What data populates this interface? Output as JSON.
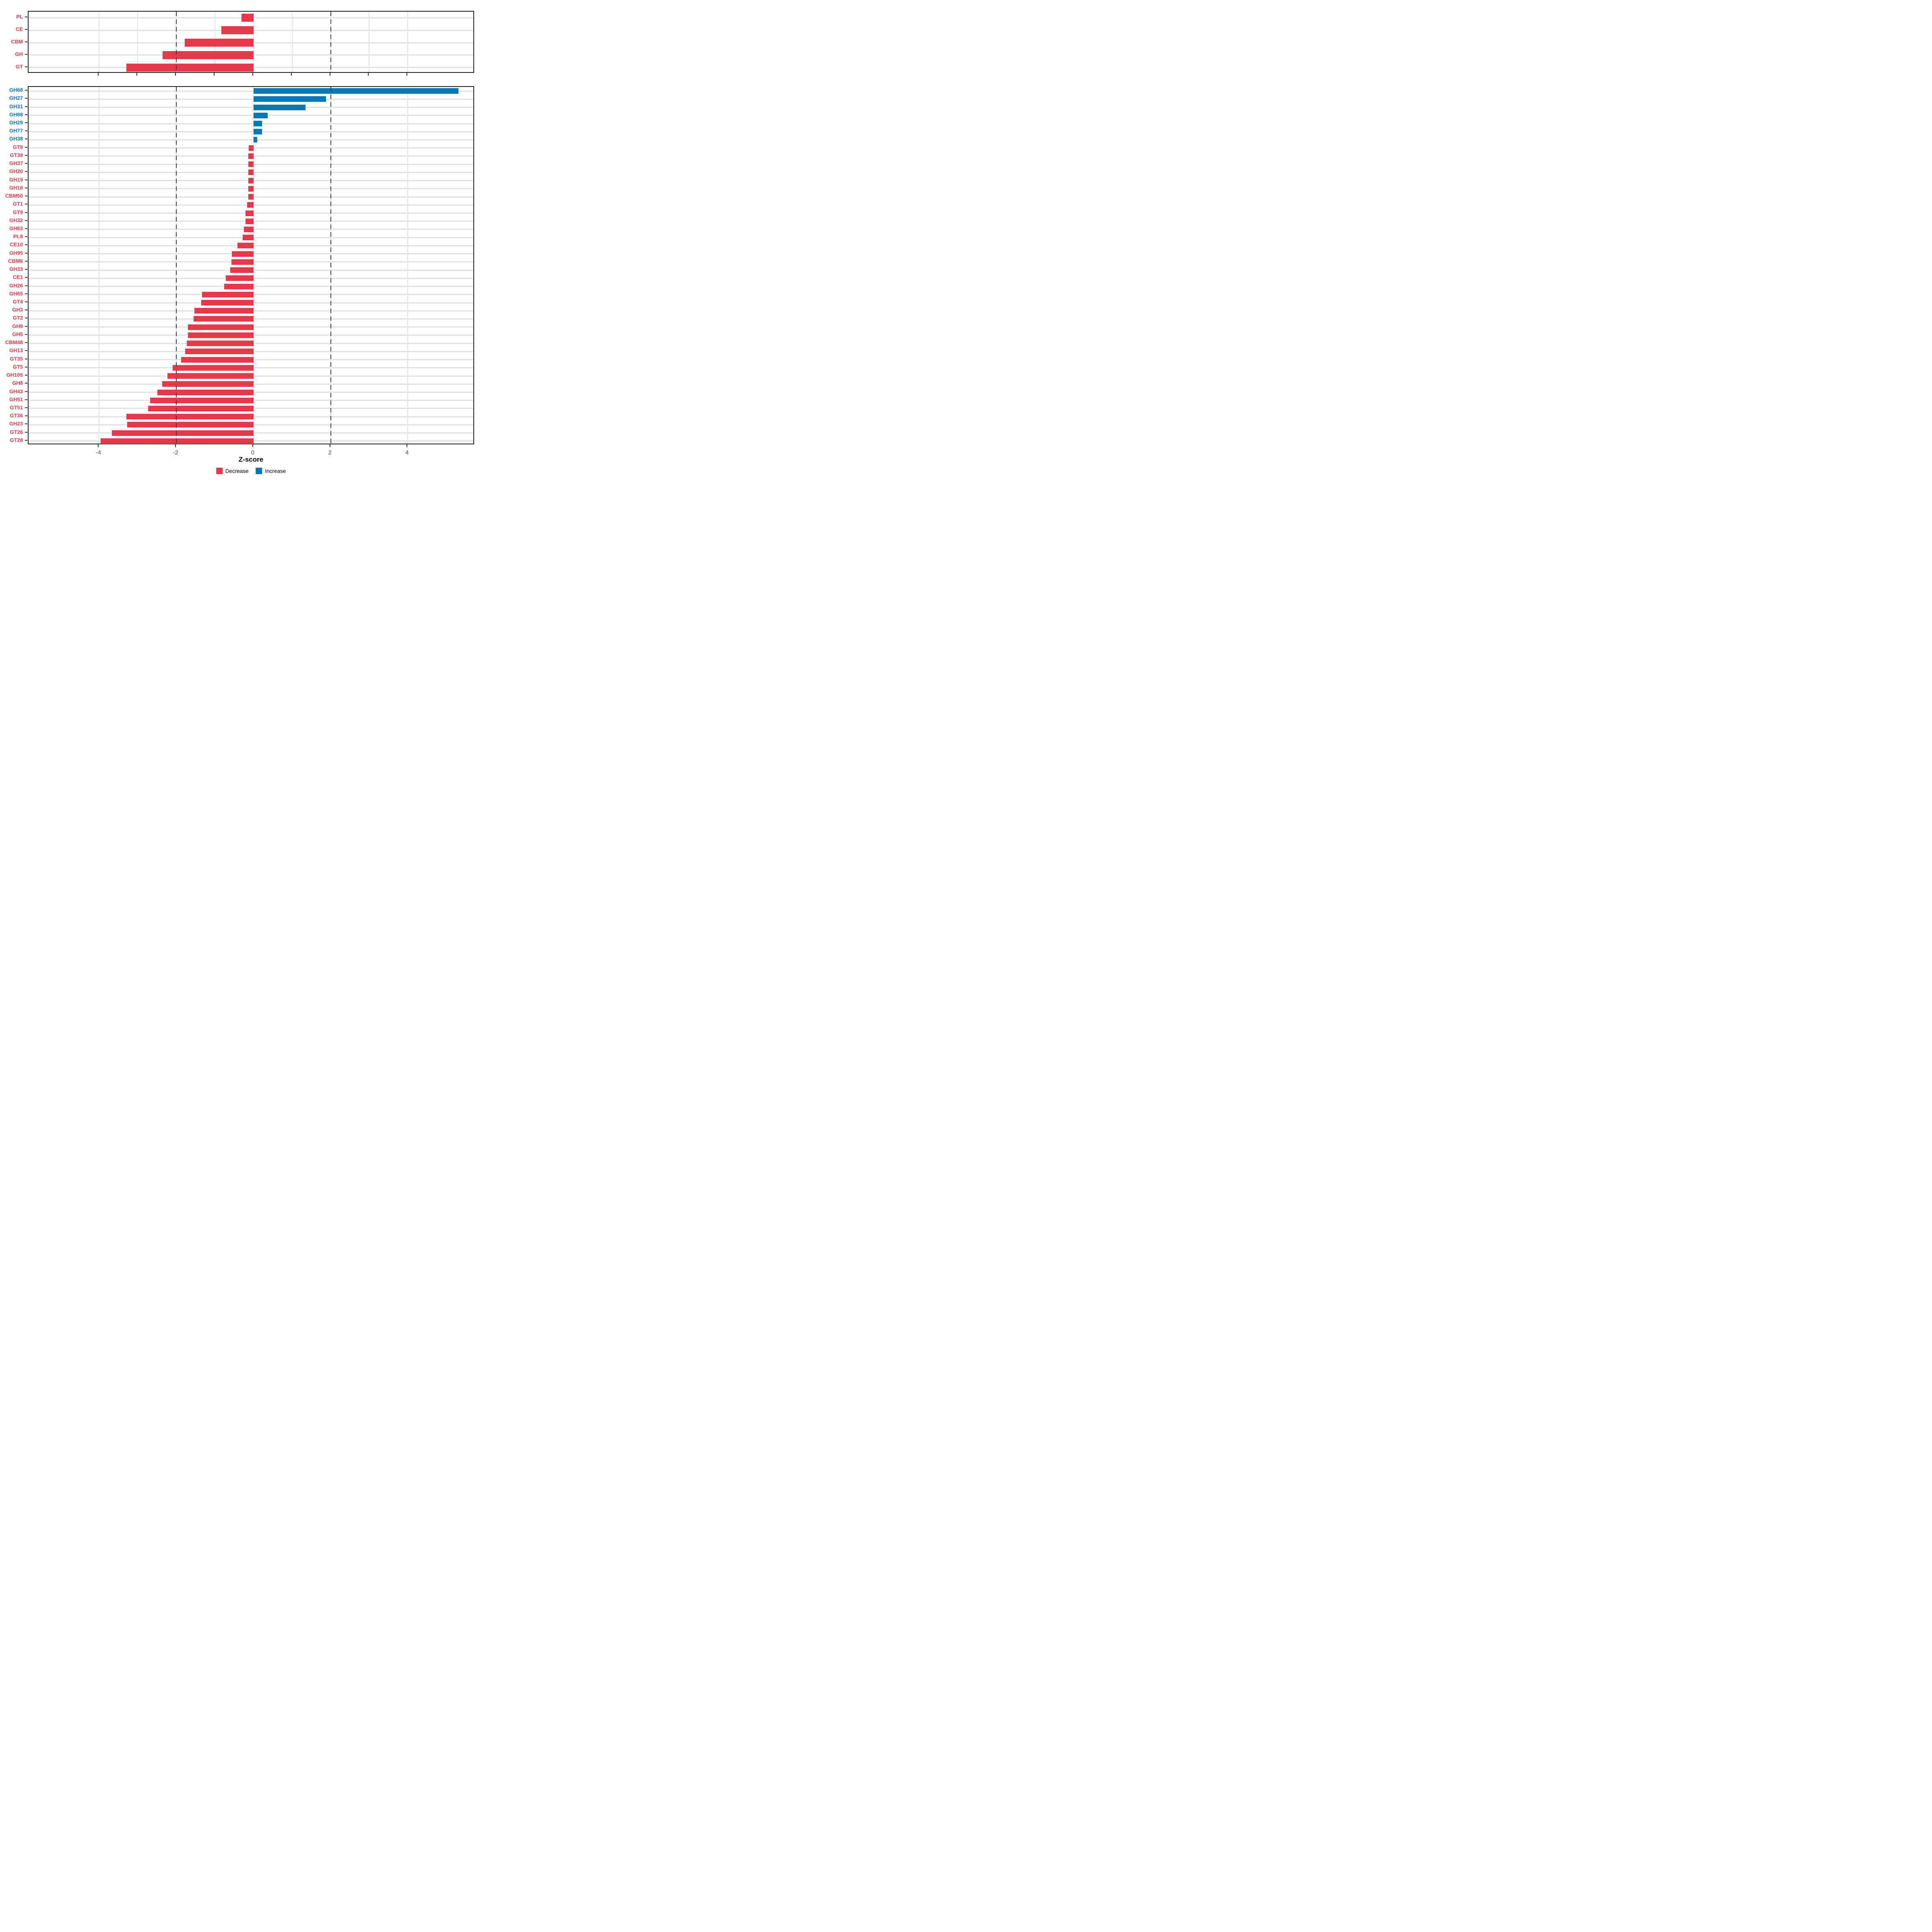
{
  "page": {
    "background": "#ffffff"
  },
  "x_axis": {
    "title": "Z-score",
    "tick_labels": [
      "-4",
      "-2",
      "0",
      "2",
      "4"
    ],
    "tick_values": [
      -4,
      -2,
      0,
      2,
      4
    ]
  },
  "legend": {
    "items": [
      {
        "label": "Decrease",
        "color": "#e5384a"
      },
      {
        "label": "Increase",
        "color": "#0878b4"
      }
    ]
  },
  "chart_data": {
    "type": "bar",
    "orientation": "horizontal",
    "xlabel": "Z-score",
    "xlim": [
      -5.83,
      5.74
    ],
    "grid": "on",
    "legend_position": "bottom",
    "dashed_reference_lines_x": [
      -2,
      2
    ],
    "colors": {
      "decrease": "#e5384a",
      "increase": "#0878b4"
    },
    "panels": [
      {
        "name": "cazyme-class-summary",
        "grid_x": [
          -4,
          -3,
          -2,
          -1,
          0,
          1,
          2,
          3,
          4
        ],
        "tick_x": [
          -4,
          -3,
          -2,
          -1,
          0,
          1,
          2,
          3,
          4
        ],
        "show_tick_labels": false,
        "categories": [
          "PL",
          "CE",
          "CBM",
          "GH",
          "GT"
        ],
        "values": [
          -0.31,
          -0.83,
          -1.78,
          -2.36,
          -3.29
        ]
      },
      {
        "name": "cazyme-family-detail",
        "grid_x": [
          -4,
          -2,
          0,
          2,
          4
        ],
        "tick_x": [
          -4,
          -2,
          0,
          2,
          4
        ],
        "show_tick_labels": true,
        "categories": [
          "GH68",
          "GH27",
          "GH31",
          "GH88",
          "GH29",
          "GH77",
          "GH38",
          "GT8",
          "GT39",
          "GH37",
          "GH20",
          "GH19",
          "GH18",
          "CBM50",
          "GT1",
          "GT9",
          "GH32",
          "GH63",
          "PL8",
          "CE10",
          "GH95",
          "CBM6",
          "GH33",
          "CE1",
          "GH26",
          "GH65",
          "GT4",
          "GH3",
          "GT2",
          "GH9",
          "GH5",
          "CBM48",
          "GH13",
          "GT35",
          "GT5",
          "GH105",
          "GH8",
          "GH43",
          "GH51",
          "GT51",
          "GT36",
          "GH23",
          "GT26",
          "GT28"
        ],
        "values": [
          5.31,
          1.88,
          1.35,
          0.37,
          0.22,
          0.22,
          0.1,
          -0.12,
          -0.13,
          -0.13,
          -0.13,
          -0.13,
          -0.13,
          -0.13,
          -0.17,
          -0.21,
          -0.21,
          -0.25,
          -0.28,
          -0.42,
          -0.56,
          -0.57,
          -0.6,
          -0.72,
          -0.76,
          -1.33,
          -1.35,
          -1.53,
          -1.55,
          -1.7,
          -1.7,
          -1.73,
          -1.77,
          -1.88,
          -2.1,
          -2.23,
          -2.37,
          -2.49,
          -2.68,
          -2.73,
          -3.29,
          -3.27,
          -3.67,
          -3.96
        ]
      }
    ]
  }
}
